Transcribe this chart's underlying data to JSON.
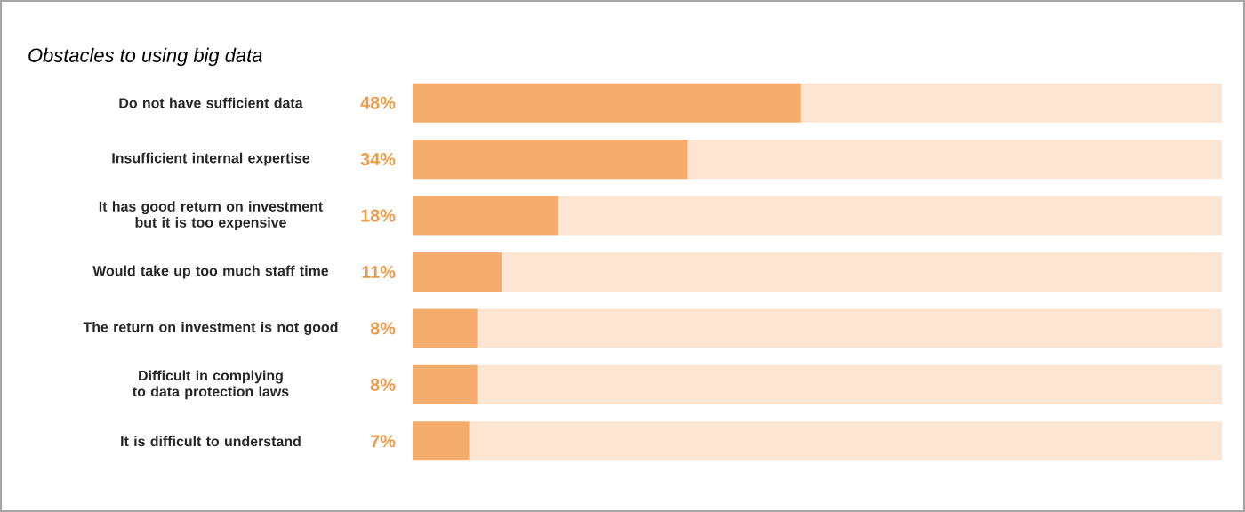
{
  "chart_data": {
    "type": "bar",
    "orientation": "horizontal",
    "stacked": true,
    "title": "Obstacles to using big data",
    "categories": [
      "Do not have sufficient data",
      "Insufficient internal expertise",
      "It has good return on investment but it is too expensive",
      "Would take up too much staff time",
      "The return on investment is not good",
      "Difficult in complying to data protection laws",
      "It is difficult to understand"
    ],
    "series": [
      {
        "color": "#f5ad6e",
        "values": [
          48,
          34,
          18,
          11,
          8,
          8,
          7
        ],
        "value_labels": [
          "48%",
          "34%",
          "18%",
          "11%",
          "8%",
          "8%",
          "7%"
        ]
      },
      {
        "color": "#fce6d3",
        "values": [
          52,
          66,
          82,
          89,
          92,
          92,
          93
        ]
      }
    ],
    "xlim": [
      0,
      100
    ]
  }
}
